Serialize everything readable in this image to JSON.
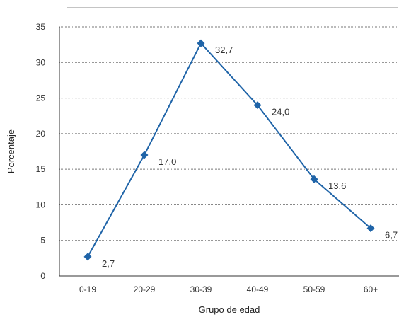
{
  "chart_data": {
    "type": "line",
    "title": "",
    "xlabel": "Grupo de edad",
    "ylabel": "Porcentaje",
    "categories": [
      "0-19",
      "20-29",
      "30-39",
      "40-49",
      "50-59",
      "60+"
    ],
    "series": [
      {
        "values": [
          2.7,
          17.0,
          32.7,
          24.0,
          13.6,
          6.7
        ]
      }
    ],
    "data_labels": [
      "2,7",
      "17,0",
      "32,7",
      "24,0",
      "13,6",
      "6,7"
    ],
    "yticks": [
      "0",
      "5",
      "10",
      "15",
      "20",
      "25",
      "30",
      "35"
    ],
    "ylim": [
      0,
      35
    ],
    "grid": true,
    "line_color": "#1f64a8",
    "marker": "diamond"
  }
}
